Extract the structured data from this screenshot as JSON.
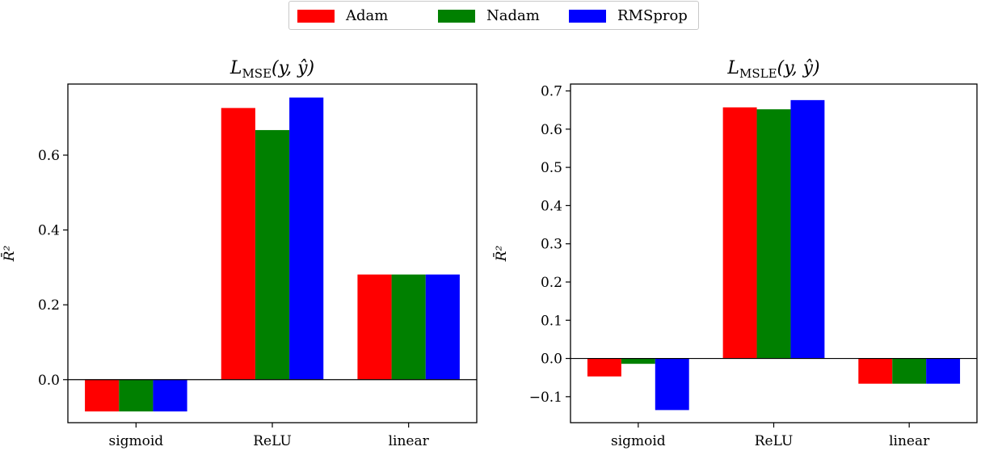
{
  "legend": [
    {
      "label": "Adam",
      "color": "#ff0000"
    },
    {
      "label": "Nadam",
      "color": "#008000"
    },
    {
      "label": "RMSprop",
      "color": "#0000ff"
    }
  ],
  "chart_data": [
    {
      "type": "bar",
      "title": "L_MSE(y, ŷ)",
      "title_parts": {
        "main": "L",
        "sub": "MSE",
        "args": "(y, ŷ)"
      },
      "ylabel": "R̄²",
      "xlabel": "",
      "categories": [
        "sigmoid",
        "ReLU",
        "linear"
      ],
      "series": [
        {
          "name": "Adam",
          "values": [
            -0.085,
            0.726,
            0.281
          ]
        },
        {
          "name": "Nadam",
          "values": [
            -0.085,
            0.667,
            0.281
          ]
        },
        {
          "name": "RMSprop",
          "values": [
            -0.085,
            0.754,
            0.281
          ]
        }
      ],
      "ylim": [
        -0.115,
        0.79
      ],
      "yticks": [
        0.0,
        0.2,
        0.4,
        0.6
      ],
      "ytick_labels": [
        "0.0",
        "0.2",
        "0.4",
        "0.6"
      ],
      "grid": false,
      "legend": "top-center"
    },
    {
      "type": "bar",
      "title": "L_MSLE(y, ŷ)",
      "title_parts": {
        "main": "L",
        "sub": "MSLE",
        "args": "(y, ŷ)"
      },
      "ylabel": "R̄²",
      "xlabel": "",
      "categories": [
        "sigmoid",
        "ReLU",
        "linear"
      ],
      "series": [
        {
          "name": "Adam",
          "values": [
            -0.047,
            0.657,
            -0.066
          ]
        },
        {
          "name": "Nadam",
          "values": [
            -0.014,
            0.652,
            -0.066
          ]
        },
        {
          "name": "RMSprop",
          "values": [
            -0.135,
            0.676,
            -0.066
          ]
        }
      ],
      "ylim": [
        -0.168,
        0.718
      ],
      "yticks": [
        -0.1,
        0.0,
        0.1,
        0.2,
        0.3,
        0.4,
        0.5,
        0.6,
        0.7
      ],
      "ytick_labels": [
        "−0.1",
        "0.0",
        "0.1",
        "0.2",
        "0.3",
        "0.4",
        "0.5",
        "0.6",
        "0.7"
      ],
      "grid": false,
      "legend": "top-center"
    }
  ]
}
